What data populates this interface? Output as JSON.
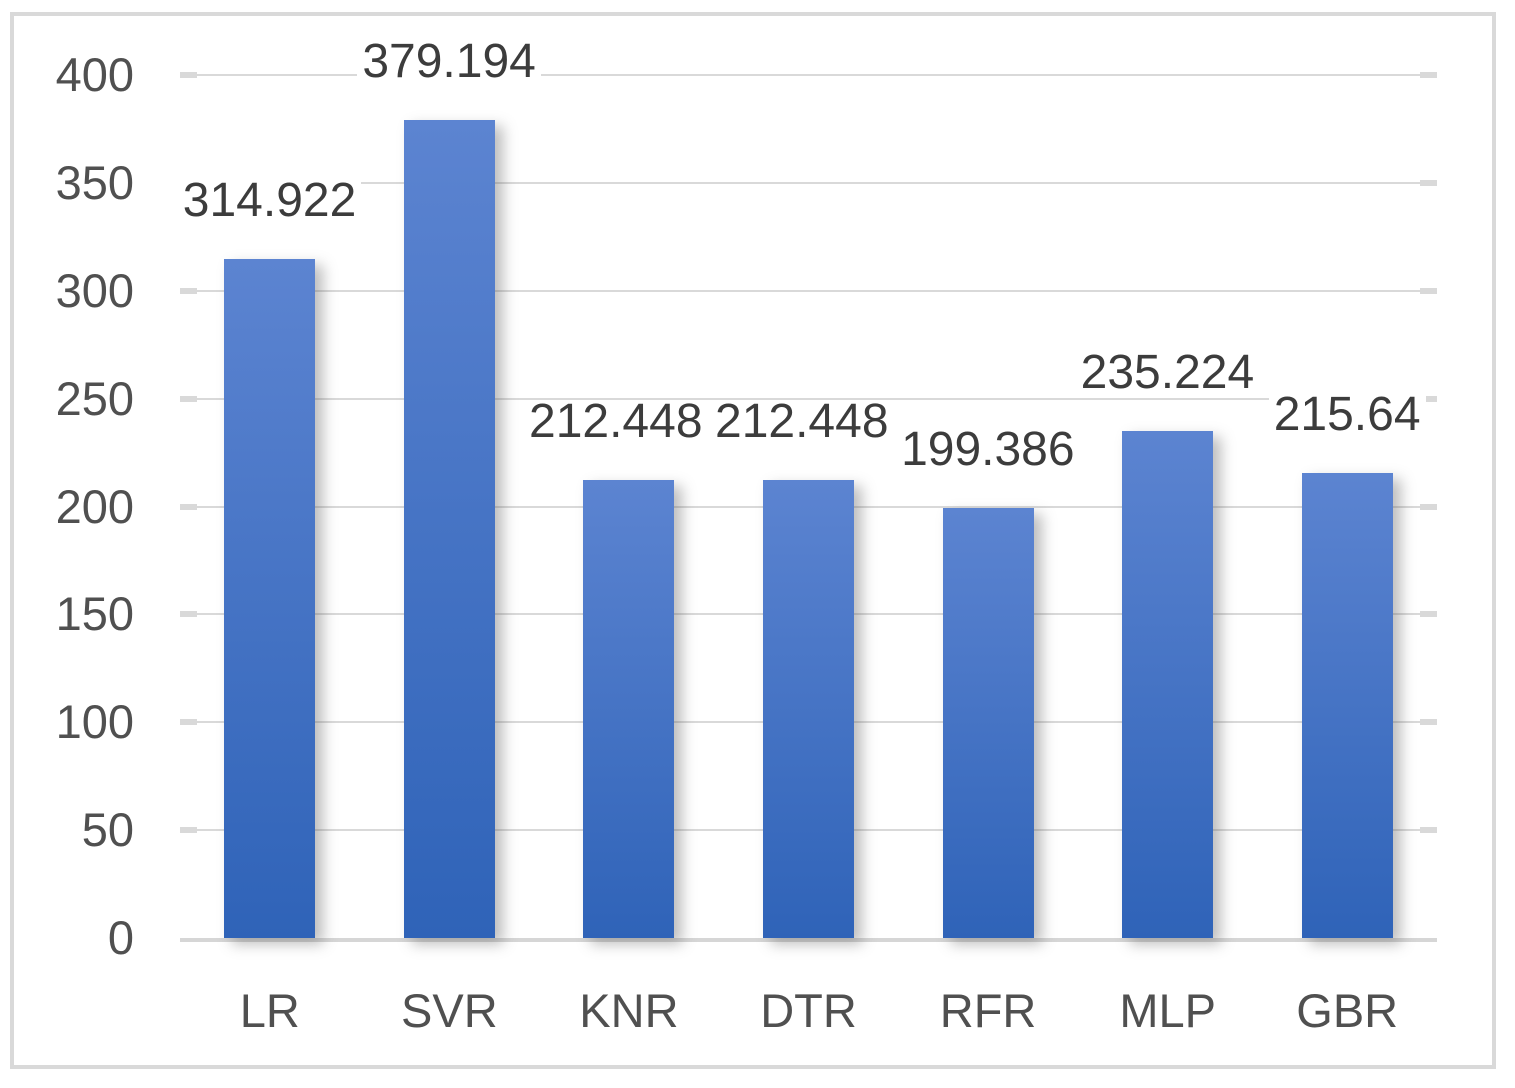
{
  "chart_data": {
    "type": "bar",
    "title": "",
    "xlabel": "",
    "ylabel": "",
    "categories": [
      "LR",
      "SVR",
      "KNR",
      "DTR",
      "RFR",
      "MLP",
      "GBR"
    ],
    "values": [
      314.922,
      379.194,
      212.448,
      212.448,
      199.386,
      235.224,
      215.64
    ],
    "data_labels": [
      "314.922",
      "379.194",
      "212.448",
      "212.448",
      "199.386",
      "235.224",
      "215.64"
    ],
    "yticks": [
      0,
      50,
      100,
      150,
      200,
      250,
      300,
      350,
      400
    ],
    "ytick_labels": [
      "0",
      "50",
      "100",
      "150",
      "200",
      "250",
      "300",
      "350",
      "400"
    ],
    "ylim": [
      0,
      400
    ],
    "grid": true,
    "legend_position": "none",
    "colors": {
      "bar_gradient_top": "#5C84D1",
      "bar_gradient_bottom": "#2F63B8",
      "gridline": "#D9D9D9",
      "axis_text": "#505050",
      "data_label_text": "#3C3C3C",
      "frame_border": "#D9D9D9",
      "background": "#FFFFFF"
    }
  }
}
